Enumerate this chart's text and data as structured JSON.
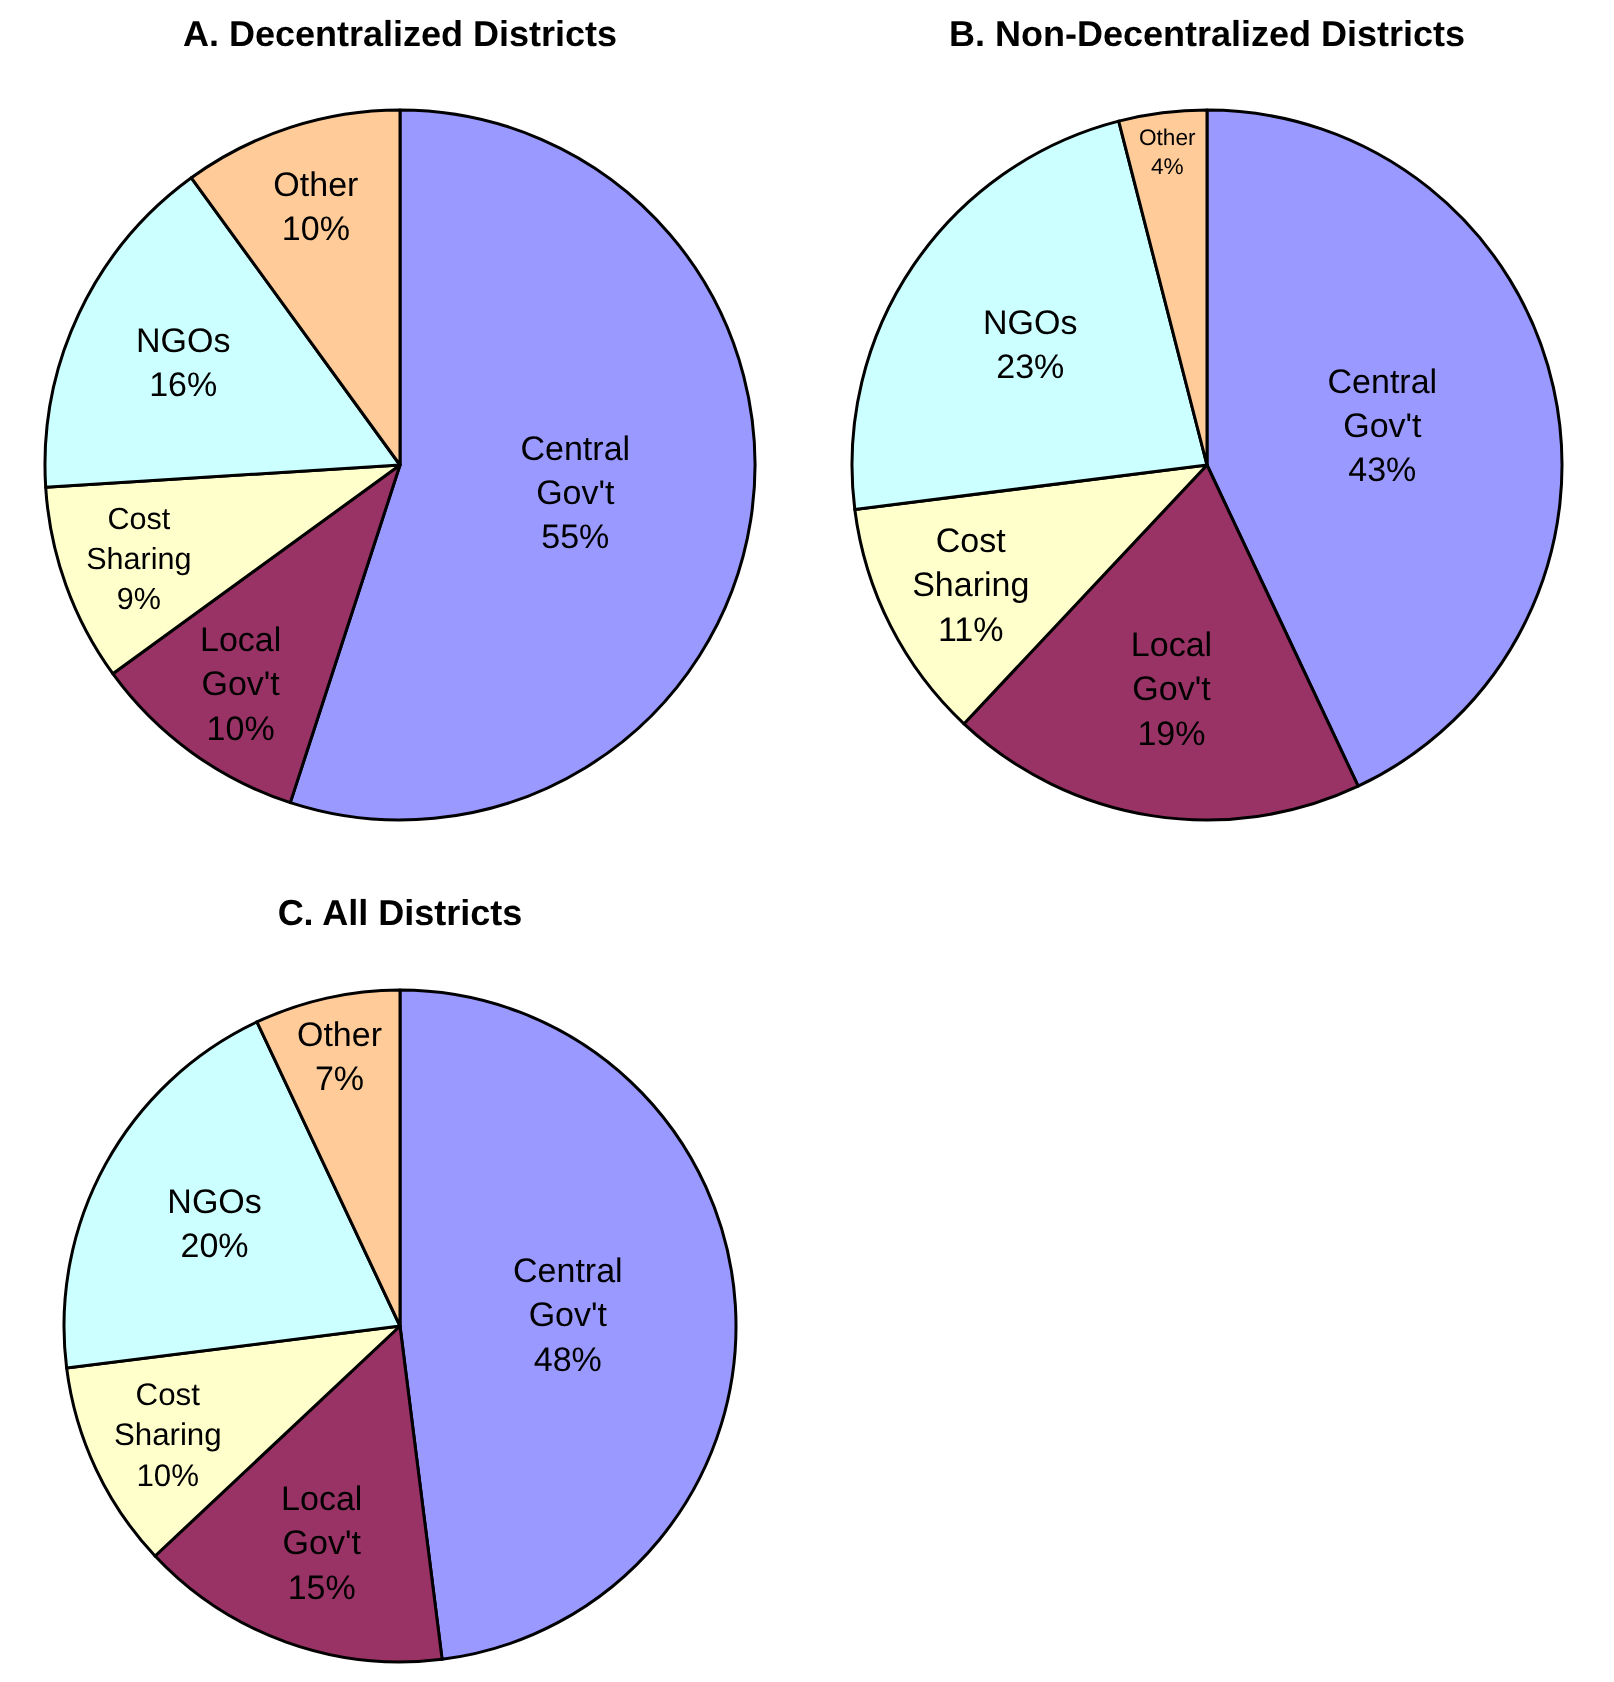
{
  "chart_data": [
    {
      "type": "pie",
      "title": "A. Decentralized Districts",
      "categories": [
        "Central Gov't",
        "Local Gov't",
        "Cost Sharing",
        "NGOs",
        "Other"
      ],
      "values": [
        55,
        10,
        9,
        16,
        10
      ],
      "value_labels": [
        "55%",
        "10%",
        "9%",
        "16%",
        "10%"
      ],
      "colors": [
        "#9999ff",
        "#993366",
        "#ffffcc",
        "#ccffff",
        "#ffcc99"
      ],
      "legend": false
    },
    {
      "type": "pie",
      "title": "B. Non-Decentralized Districts",
      "categories": [
        "Central Gov't",
        "Local Gov't",
        "Cost Sharing",
        "NGOs",
        "Other"
      ],
      "values": [
        43,
        19,
        11,
        23,
        4
      ],
      "value_labels": [
        "43%",
        "19%",
        "11%",
        "23%",
        "4%"
      ],
      "colors": [
        "#9999ff",
        "#993366",
        "#ffffcc",
        "#ccffff",
        "#ffcc99"
      ],
      "legend": false
    },
    {
      "type": "pie",
      "title": "C. All Districts",
      "categories": [
        "Central Gov't",
        "Local Gov't",
        "Cost Sharing",
        "NGOs",
        "Other"
      ],
      "values": [
        48,
        15,
        10,
        20,
        7
      ],
      "value_labels": [
        "48%",
        "15%",
        "10%",
        "20%",
        "7%"
      ],
      "colors": [
        "#9999ff",
        "#993366",
        "#ffffcc",
        "#ccffff",
        "#ffcc99"
      ],
      "legend": false
    }
  ]
}
